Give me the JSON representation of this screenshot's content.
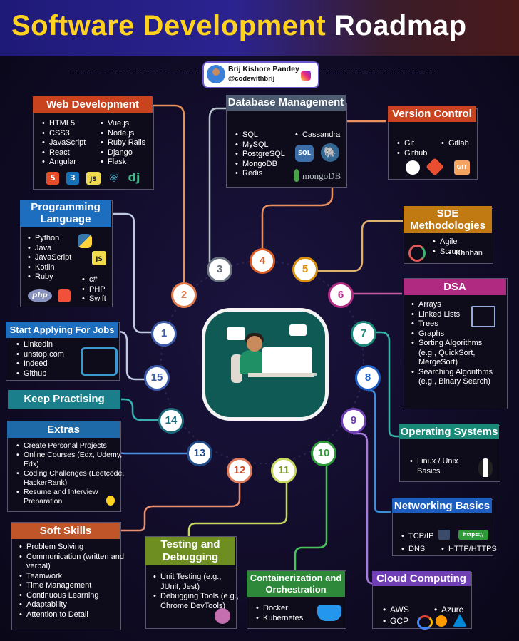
{
  "header": {
    "title_part1": "Software Development",
    "title_part2": "Roadmap"
  },
  "author": {
    "name": "Brij Kishore Pandey",
    "handle": "@codewithbrij",
    "social_icon": "instagram-icon"
  },
  "center": {
    "illustration": "developer-at-laptop"
  },
  "colors": {
    "web": "#c8431e",
    "db": "#4b5a6f",
    "vc": "#c8431e",
    "sde": "#c17a12",
    "dsa": "#b02a82",
    "os": "#1a8a78",
    "net": "#1e5dc0",
    "cloud": "#6f3fb3",
    "cont": "#2e8a3a",
    "test": "#6e8e22",
    "soft": "#c0552a",
    "extras": "#1e6aa8",
    "keep": "#1a7f8a",
    "jobs": "#1e6ec0",
    "prog": "#1e6ec0"
  },
  "steps": [
    "1",
    "2",
    "3",
    "4",
    "5",
    "6",
    "7",
    "8",
    "9",
    "10",
    "11",
    "12",
    "13",
    "14",
    "15"
  ],
  "cards": {
    "web": {
      "title": "Web Development",
      "col1": [
        "HTML5",
        "CSS3",
        "JavaScript",
        "React",
        "Angular"
      ],
      "col2": [
        "Vue.js",
        "Node.js",
        "Ruby Rails",
        "Django",
        "Flask"
      ],
      "icons": [
        "html5-icon",
        "css3-icon",
        "js-icon",
        "react-icon",
        "django-icon"
      ],
      "icon_text": [
        "5",
        "3",
        "JS",
        "⚛",
        "dj"
      ]
    },
    "db": {
      "title": "Database Management",
      "col1": [
        "SQL",
        "MySQL",
        "PostgreSQL",
        "MongoDB",
        "Redis"
      ],
      "col2": [
        "Cassandra"
      ],
      "logo_text": "mongoDB",
      "sql_text": "SQL"
    },
    "vc": {
      "title": "Version Control",
      "col1": [
        "Git",
        "Github"
      ],
      "col2": [
        "Gitlab"
      ],
      "git_text": "GIT"
    },
    "sde": {
      "title": "SDE Methodologies",
      "row1": [
        "Agile",
        "Scrum"
      ],
      "row2": [
        "Kanban"
      ]
    },
    "dsa": {
      "title": "DSA",
      "items": [
        "Arrays",
        "Linked Lists",
        "Trees",
        "Graphs",
        "Sorting Algorithms (e.g., QuickSort, MergeSort)",
        "Searching Algorithms (e.g., Binary Search)"
      ]
    },
    "prog": {
      "title": "Programming Language",
      "col1": [
        "Python",
        "Java",
        "JavaScript",
        "Kotlin",
        "Ruby"
      ],
      "col2": [
        "c#",
        "PHP",
        "Swift"
      ],
      "php_text": "php",
      "js_text": "JS"
    },
    "jobs": {
      "title": "Start Applying For Jobs",
      "items": [
        "Linkedin",
        "unstop.com",
        "Indeed",
        "Github"
      ]
    },
    "keep": {
      "title": "Keep Practising"
    },
    "extras": {
      "title": "Extras",
      "items": [
        "Create Personal Projects",
        "Online Courses (Edx, Udemy, Edx)",
        "Coding Challenges (Leetcode, HackerRank)",
        "Resume and Interview Preparation"
      ]
    },
    "soft": {
      "title": "Soft Skills",
      "items": [
        "Problem Solving",
        "Communication (written and verbal)",
        "Teamwork",
        "Time Management",
        "Continuous Learning",
        "Adaptability",
        "Attention to Detail"
      ]
    },
    "test": {
      "title": "Testing and Debugging",
      "items": [
        "Unit Testing (e.g., JUnit, Jest)",
        "Debugging Tools (e.g., Chrome DevTools)"
      ]
    },
    "cont": {
      "title": "Containerization and Orchestration",
      "items": [
        "Docker",
        "Kubernetes"
      ]
    },
    "cloud": {
      "title": "Cloud Computing",
      "col1": [
        "AWS",
        "GCP"
      ],
      "col2": [
        "Azure"
      ]
    },
    "net": {
      "title": "Networking Basics",
      "col1": [
        "TCP/IP",
        "DNS"
      ],
      "col2": [
        "HTTP/HTTPS"
      ],
      "https_text": "https://"
    },
    "os": {
      "title": "Operating Systems",
      "items": [
        "Linux / Unix Basics"
      ]
    }
  }
}
